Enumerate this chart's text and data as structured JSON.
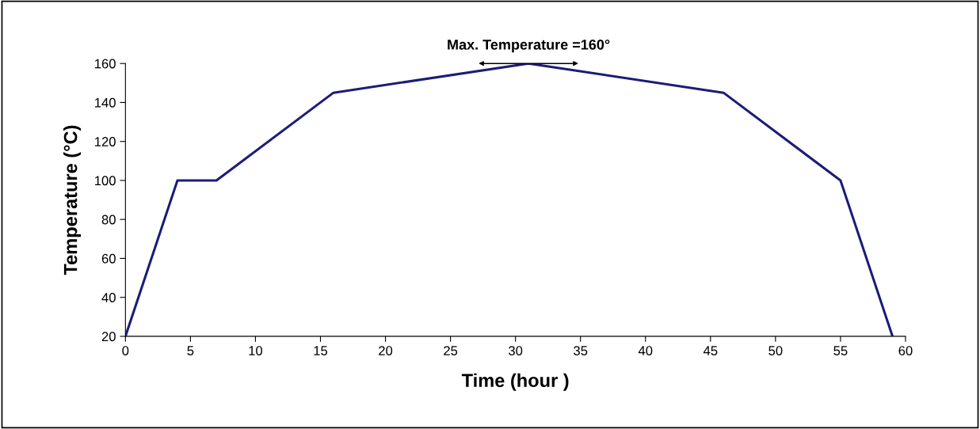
{
  "chart_data": {
    "type": "line",
    "xlabel": "Time (hour )",
    "ylabel": "Temperature (°C)",
    "x": [
      0,
      4,
      7,
      16,
      31,
      46,
      55,
      59
    ],
    "series": [
      {
        "color": "#1c1c78",
        "values": [
          20,
          100,
          100,
          145,
          160,
          145,
          100,
          20
        ]
      }
    ],
    "xlim": [
      0,
      60
    ],
    "xticks": [
      0,
      5,
      10,
      15,
      20,
      25,
      30,
      35,
      40,
      45,
      50,
      55,
      60
    ],
    "ylim": [
      20,
      160
    ],
    "yticks": [
      20,
      40,
      60,
      80,
      100,
      120,
      140,
      160
    ],
    "annotations": [
      {
        "text": "Max. Temperature =160°",
        "x": 31,
        "y": 160
      }
    ],
    "grid": false,
    "legend": false,
    "marker": "none",
    "line_style": "solid"
  }
}
